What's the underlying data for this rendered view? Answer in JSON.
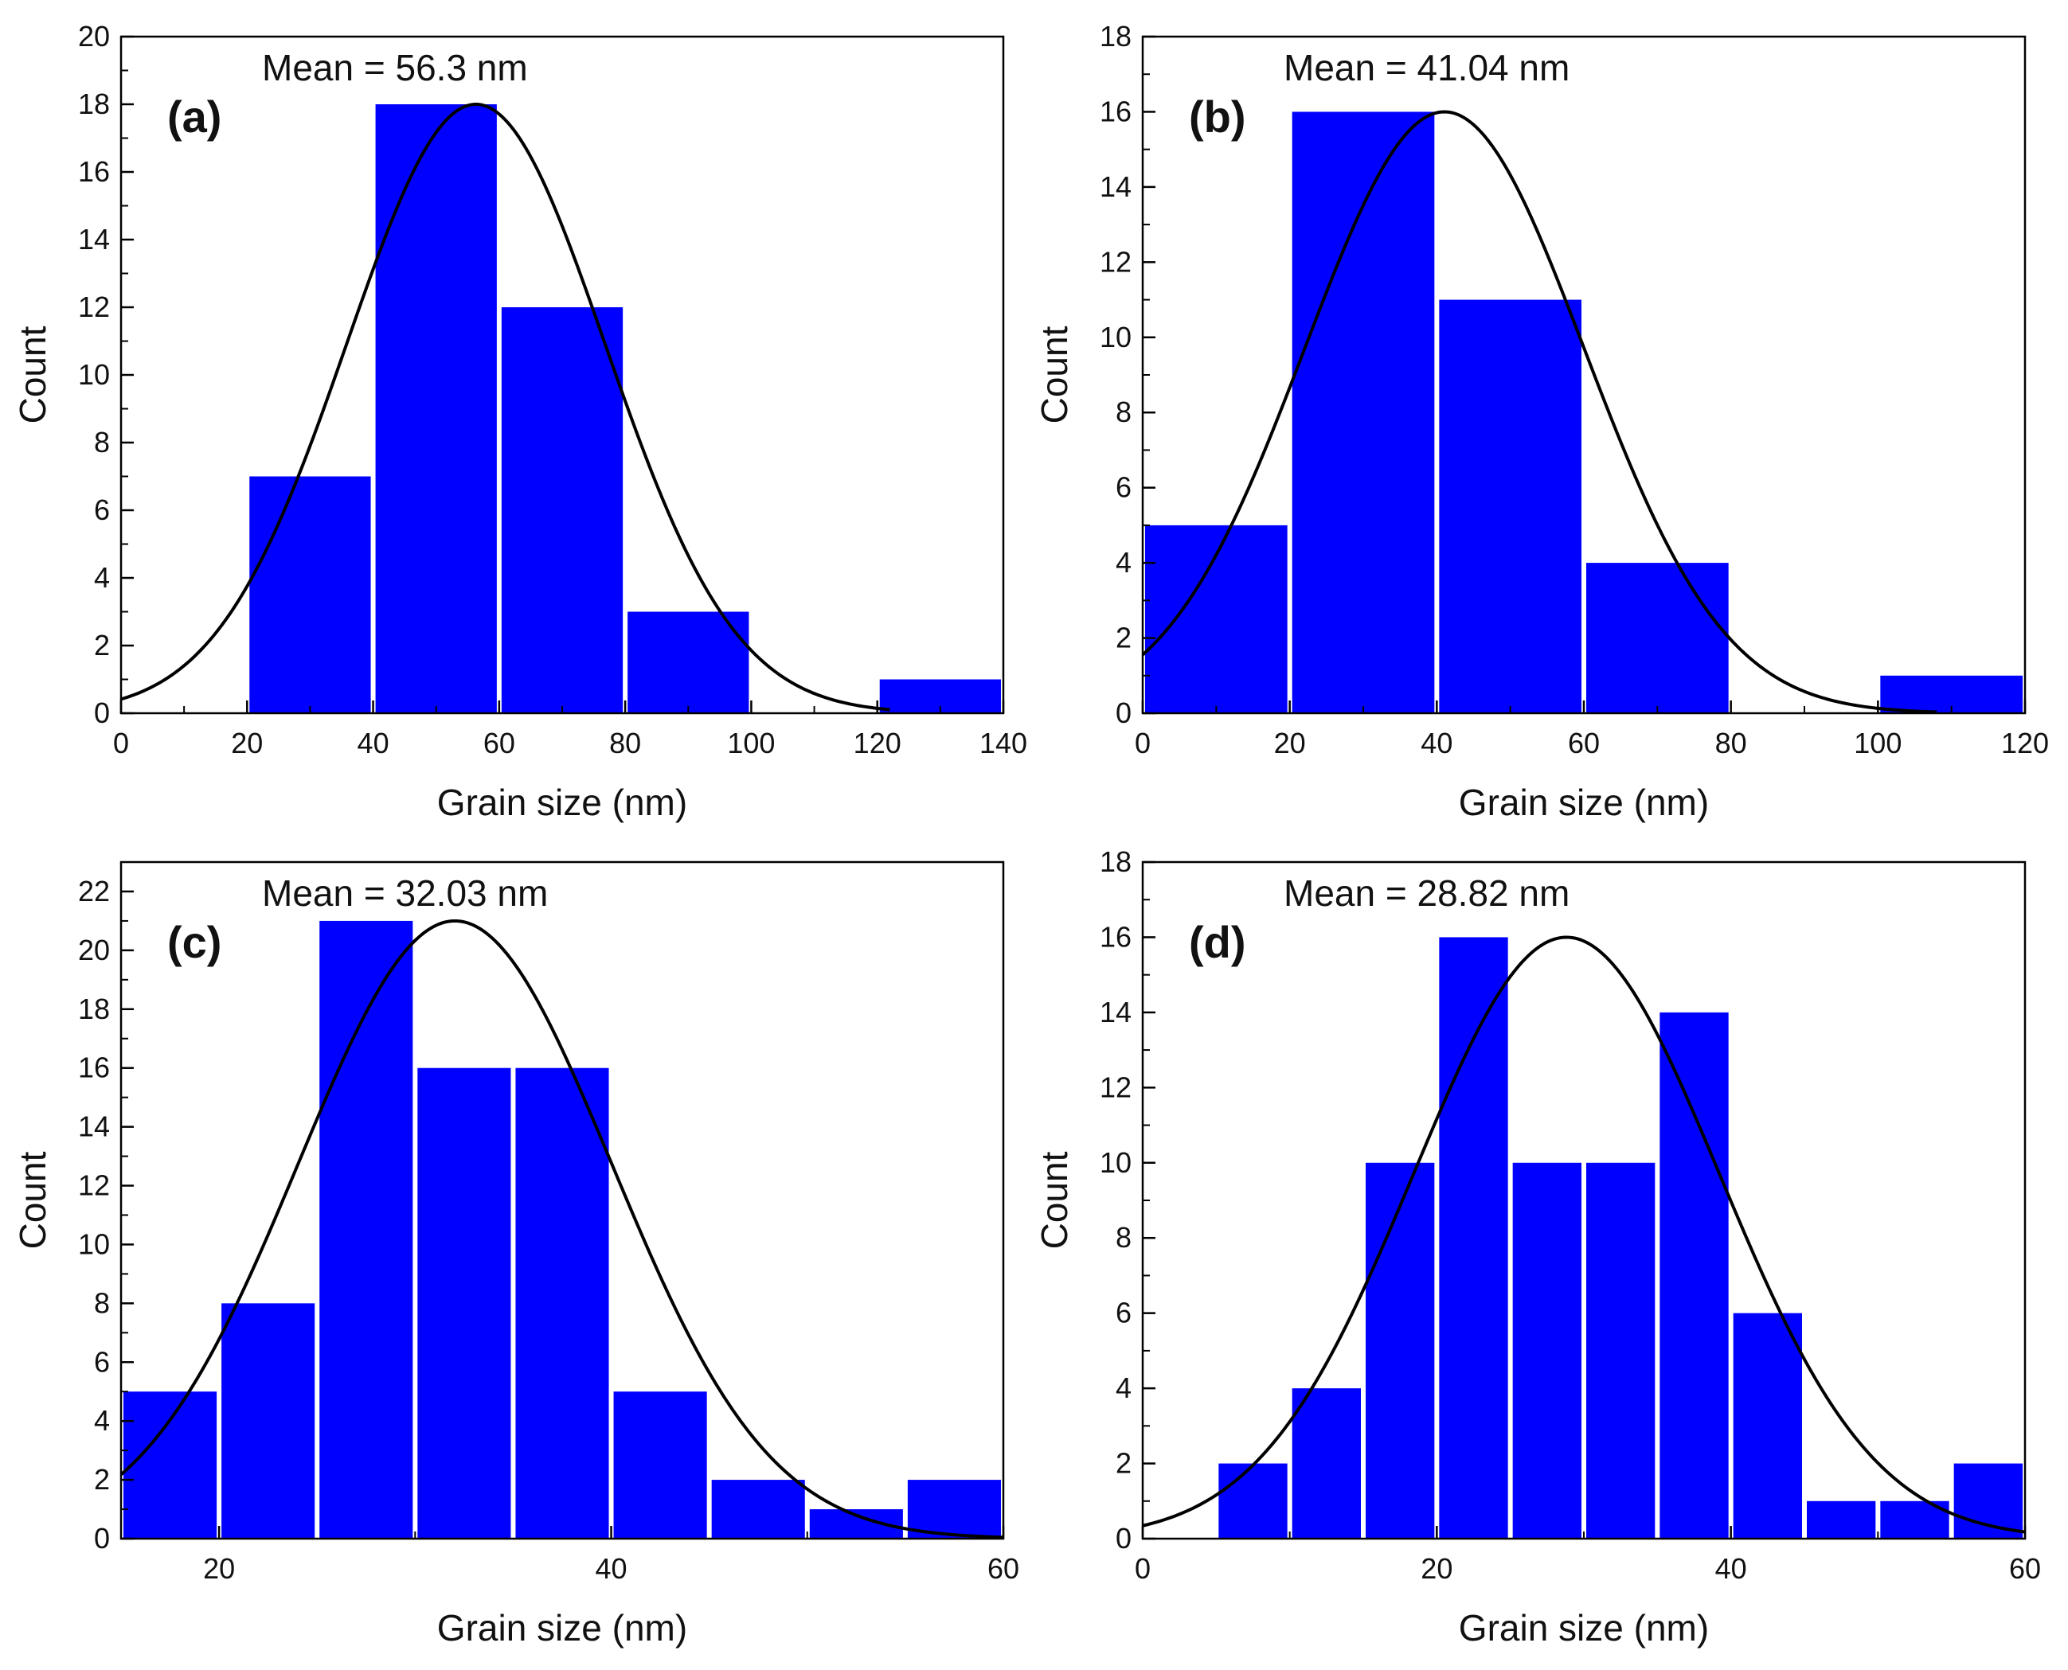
{
  "colors": {
    "bar": "#0000ff",
    "fit": "#000000",
    "axis": "#000000",
    "background": "#ffffff"
  },
  "chart_data": [
    {
      "type": "bar",
      "panel_label": "(a)",
      "annotation": "Mean = 56.3 nm",
      "xlabel": "Grain size (nm)",
      "ylabel": "Count",
      "xlim": [
        0,
        140
      ],
      "ylim": [
        0,
        20
      ],
      "xticks": [
        "0",
        "20",
        "40",
        "60",
        "80",
        "100",
        "120",
        "140"
      ],
      "yticks": [
        "0",
        "2",
        "4",
        "6",
        "8",
        "10",
        "12",
        "14",
        "16",
        "18",
        "20"
      ],
      "bins": [
        [
          20,
          40
        ],
        [
          40,
          60
        ],
        [
          60,
          80
        ],
        [
          80,
          100
        ],
        [
          100,
          120
        ],
        [
          120,
          140
        ]
      ],
      "values": [
        7,
        18,
        12,
        3,
        0,
        1
      ],
      "fit": {
        "mean": 56.3,
        "sigma": 20.5,
        "peak": 18,
        "range": [
          0,
          122
        ]
      }
    },
    {
      "type": "bar",
      "panel_label": "(b)",
      "annotation": "Mean = 41.04 nm",
      "xlabel": "Grain size (nm)",
      "ylabel": "Count",
      "xlim": [
        0,
        120
      ],
      "ylim": [
        0,
        18
      ],
      "xticks": [
        "0",
        "20",
        "40",
        "60",
        "80",
        "100",
        "120"
      ],
      "yticks": [
        "0",
        "2",
        "4",
        "6",
        "8",
        "10",
        "12",
        "14",
        "16",
        "18"
      ],
      "bins": [
        [
          0,
          20
        ],
        [
          20,
          40
        ],
        [
          40,
          60
        ],
        [
          60,
          80
        ],
        [
          80,
          100
        ],
        [
          100,
          120
        ]
      ],
      "values": [
        5,
        16,
        11,
        4,
        0,
        1
      ],
      "fit": {
        "mean": 41.04,
        "sigma": 19.0,
        "peak": 16,
        "range": [
          0,
          108
        ]
      }
    },
    {
      "type": "bar",
      "panel_label": "(c)",
      "annotation": "Mean = 32.03 nm",
      "xlabel": "Grain size (nm)",
      "ylabel": "Count",
      "xlim": [
        15,
        60
      ],
      "ylim": [
        0,
        23
      ],
      "xticks": [
        "20",
        "40",
        "60"
      ],
      "yticks": [
        "0",
        "2",
        "4",
        "6",
        "8",
        "10",
        "12",
        "14",
        "16",
        "18",
        "20",
        "22"
      ],
      "bins": [
        [
          15,
          20
        ],
        [
          20,
          25
        ],
        [
          25,
          30
        ],
        [
          30,
          35
        ],
        [
          35,
          40
        ],
        [
          40,
          45
        ],
        [
          45,
          50
        ],
        [
          50,
          55
        ],
        [
          55,
          60
        ]
      ],
      "values": [
        5,
        8,
        21,
        16,
        16,
        5,
        2,
        1,
        2
      ],
      "fit": {
        "mean": 32.03,
        "sigma": 8.0,
        "peak": 21,
        "range": [
          15,
          60
        ]
      }
    },
    {
      "type": "bar",
      "panel_label": "(d)",
      "annotation": "Mean = 28.82 nm",
      "xlabel": "Grain size (nm)",
      "ylabel": "Count",
      "xlim": [
        0,
        60
      ],
      "ylim": [
        0,
        18
      ],
      "xticks": [
        "0",
        "20",
        "40",
        "60"
      ],
      "yticks": [
        "0",
        "2",
        "4",
        "6",
        "8",
        "10",
        "12",
        "14",
        "16",
        "18"
      ],
      "bins": [
        [
          5,
          10
        ],
        [
          10,
          15
        ],
        [
          15,
          20
        ],
        [
          20,
          25
        ],
        [
          25,
          30
        ],
        [
          30,
          35
        ],
        [
          35,
          40
        ],
        [
          40,
          45
        ],
        [
          45,
          50
        ],
        [
          50,
          55
        ],
        [
          55,
          60
        ]
      ],
      "values": [
        2,
        4,
        10,
        16,
        10,
        10,
        14,
        6,
        1,
        1,
        2
      ],
      "fit": {
        "mean": 28.82,
        "sigma": 10.4,
        "peak": 16,
        "range": [
          0,
          60
        ]
      }
    }
  ]
}
